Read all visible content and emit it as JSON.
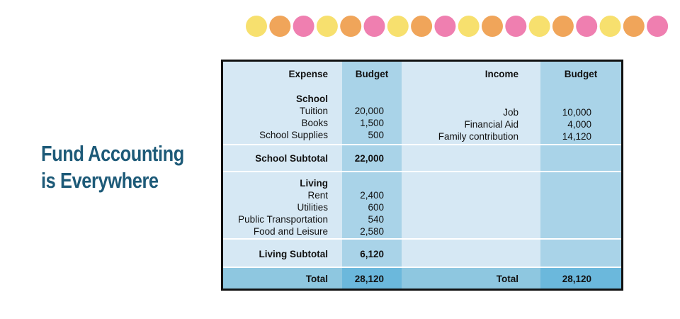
{
  "title": [
    "Fund Accounting",
    "is Everywhere"
  ],
  "table": {
    "header": [
      "Expense",
      "Budget",
      "Income",
      "Budget"
    ],
    "school": {
      "heading": "School",
      "expenses": [
        [
          "Tuition",
          "20,000"
        ],
        [
          "Books",
          "1,500"
        ],
        [
          "School Supplies",
          "500"
        ]
      ],
      "income": [
        [
          "Job",
          "10,000"
        ],
        [
          "Financial Aid",
          "4,000"
        ],
        [
          "Family contribution",
          "14,120"
        ]
      ]
    },
    "school_subtotal": [
      "School Subtotal",
      "22,000"
    ],
    "living": {
      "heading": "Living",
      "expenses": [
        [
          "Rent",
          "2,400"
        ],
        [
          "Utilities",
          "600"
        ],
        [
          "Public Transportation",
          "540"
        ],
        [
          "Food and Leisure",
          "2,580"
        ]
      ]
    },
    "living_subtotal": [
      "Living Subtotal",
      "6,120"
    ],
    "total": [
      "Total",
      "28,120",
      "Total",
      "28,120"
    ]
  }
}
